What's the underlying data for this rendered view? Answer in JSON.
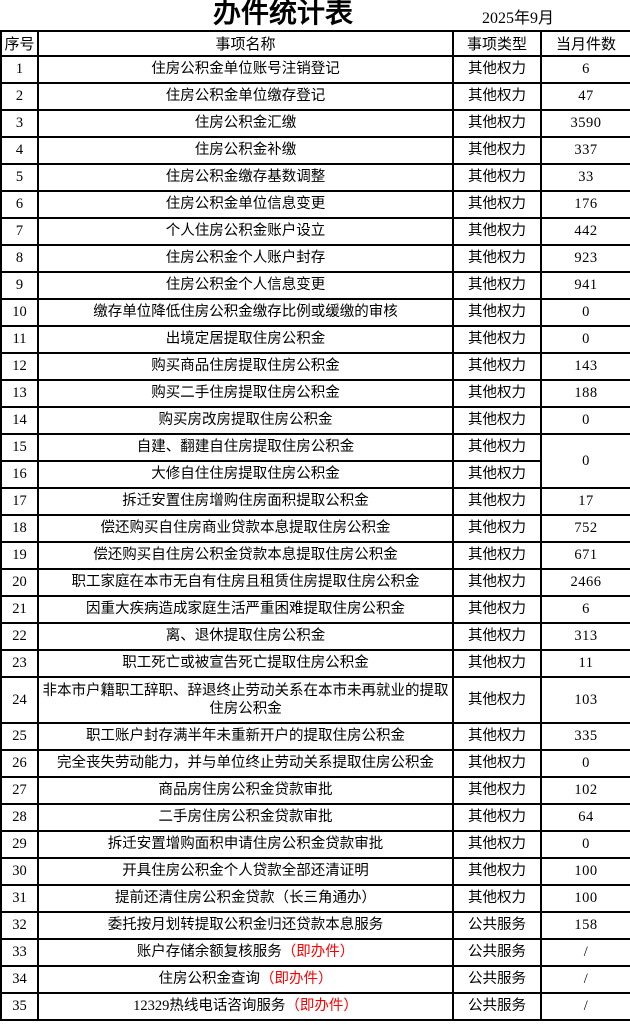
{
  "header": {
    "title": "办件统计表",
    "date": "2025年9月"
  },
  "table": {
    "headers": [
      "序号",
      "事项名称",
      "事项类型",
      "当月件数"
    ],
    "rows": [
      {
        "no": "1",
        "name": "住房公积金单位账号注销登记",
        "type": "其他权力",
        "count": "6"
      },
      {
        "no": "2",
        "name": "住房公积金单位缴存登记",
        "type": "其他权力",
        "count": "47"
      },
      {
        "no": "3",
        "name": "住房公积金汇缴",
        "type": "其他权力",
        "count": "3590"
      },
      {
        "no": "4",
        "name": "住房公积金补缴",
        "type": "其他权力",
        "count": "337"
      },
      {
        "no": "5",
        "name": "住房公积金缴存基数调整",
        "type": "其他权力",
        "count": "33"
      },
      {
        "no": "6",
        "name": "住房公积金单位信息变更",
        "type": "其他权力",
        "count": "176"
      },
      {
        "no": "7",
        "name": "个人住房公积金账户设立",
        "type": "其他权力",
        "count": "442"
      },
      {
        "no": "8",
        "name": "住房公积金个人账户封存",
        "type": "其他权力",
        "count": "923"
      },
      {
        "no": "9",
        "name": "住房公积金个人信息变更",
        "type": "其他权力",
        "count": "941"
      },
      {
        "no": "10",
        "name": "缴存单位降低住房公积金缴存比例或缓缴的审核",
        "type": "其他权力",
        "count": "0"
      },
      {
        "no": "11",
        "name": "出境定居提取住房公积金",
        "type": "其他权力",
        "count": "0"
      },
      {
        "no": "12",
        "name": "购买商品住房提取住房公积金",
        "type": "其他权力",
        "count": "143"
      },
      {
        "no": "13",
        "name": "购买二手住房提取住房公积金",
        "type": "其他权力",
        "count": "188"
      },
      {
        "no": "14",
        "name": "购买房改房提取住房公积金",
        "type": "其他权力",
        "count": "0"
      },
      {
        "no": "15",
        "name": "自建、翻建自住房提取住房公积金",
        "type": "其他权力",
        "count": "0",
        "merge": "start"
      },
      {
        "no": "16",
        "name": "大修自住住房提取住房公积金",
        "type": "其他权力",
        "merge": "skip"
      },
      {
        "no": "17",
        "name": "拆迁安置住房增购住房面积提取公积金",
        "type": "其他权力",
        "count": "17"
      },
      {
        "no": "18",
        "name": "偿还购买自住房商业贷款本息提取住房公积金",
        "type": "其他权力",
        "count": "752"
      },
      {
        "no": "19",
        "name": "偿还购买自住房公积金贷款本息提取住房公积金",
        "type": "其他权力",
        "count": "671"
      },
      {
        "no": "20",
        "name": "职工家庭在本市无自有住房且租赁住房提取住房公积金",
        "type": "其他权力",
        "count": "2466"
      },
      {
        "no": "21",
        "name": "因重大疾病造成家庭生活严重困难提取住房公积金",
        "type": "其他权力",
        "count": "6"
      },
      {
        "no": "22",
        "name": "离、退休提取住房公积金",
        "type": "其他权力",
        "count": "313"
      },
      {
        "no": "23",
        "name": "职工死亡或被宣告死亡提取住房公积金",
        "type": "其他权力",
        "count": "11"
      },
      {
        "no": "24",
        "name": "非本市户籍职工辞职、辞退终止劳动关系在本市未再就业的提取住房公积金",
        "type": "其他权力",
        "count": "103",
        "tall": true
      },
      {
        "no": "25",
        "name": "职工账户封存满半年未重新开户的提取住房公积金",
        "type": "其他权力",
        "count": "335"
      },
      {
        "no": "26",
        "name": "完全丧失劳动能力，并与单位终止劳动关系提取住房公积金",
        "type": "其他权力",
        "count": "0"
      },
      {
        "no": "27",
        "name": "商品房住房公积金贷款审批",
        "type": "其他权力",
        "count": "102"
      },
      {
        "no": "28",
        "name": "二手房住房公积金贷款审批",
        "type": "其他权力",
        "count": "64"
      },
      {
        "no": "29",
        "name": "拆迁安置增购面积申请住房公积金贷款审批",
        "type": "其他权力",
        "count": "0"
      },
      {
        "no": "30",
        "name": "开具住房公积金个人贷款全部还清证明",
        "type": "其他权力",
        "count": "100"
      },
      {
        "no": "31",
        "name": "提前还清住房公积金贷款（长三角通办）",
        "type": "其他权力",
        "count": "100"
      },
      {
        "no": "32",
        "name": "委托按月划转提取公积金归还贷款本息服务",
        "type": "公共服务",
        "count": "158"
      },
      {
        "no": "33",
        "name": "账户存储余额复核服务",
        "name_red": "（即办件）",
        "type": "公共服务",
        "count": "/"
      },
      {
        "no": "34",
        "name": "住房公积金查询",
        "name_red": "（即办件）",
        "type": "公共服务",
        "count": "/"
      },
      {
        "no": "35",
        "name": "12329热线电话咨询服务",
        "name_red": "（即办件）",
        "type": "公共服务",
        "count": "/"
      }
    ]
  },
  "colors": {
    "text": "#000000",
    "border": "#000000",
    "background": "#ffffff",
    "red_highlight": "#ff0000"
  }
}
